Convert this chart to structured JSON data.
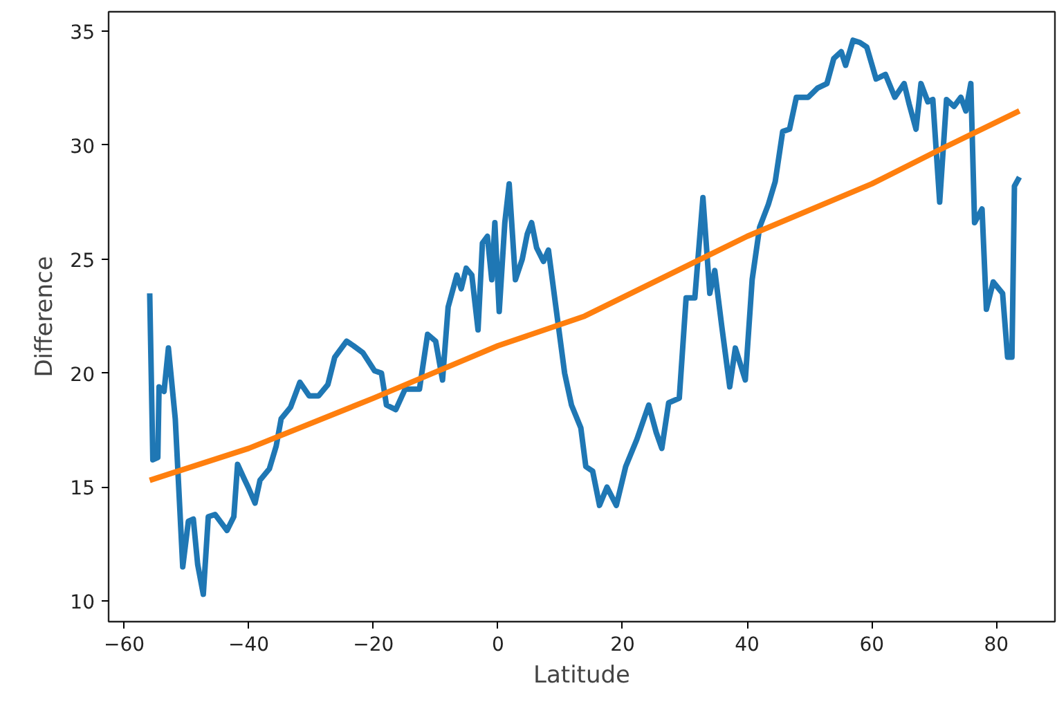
{
  "chart_data": {
    "type": "line",
    "xlabel": "Latitude",
    "ylabel": "Difference",
    "xlim": [
      -62.5,
      89.4
    ],
    "ylim": [
      9.1,
      35.85
    ],
    "xticks": [
      -60,
      -40,
      -20,
      0,
      20,
      40,
      60,
      80
    ],
    "yticks": [
      10,
      15,
      20,
      25,
      30,
      35
    ],
    "line_style": "solid",
    "series": [
      {
        "color": "#1f77b4",
        "x": [
          -55.9,
          -55.4,
          -54.6,
          -54.4,
          -53.6,
          -52.9,
          -51.8,
          -50.6,
          -49.7,
          -48.9,
          -48.2,
          -47.3,
          -46.5,
          -45.4,
          -43.5,
          -42.4,
          -41.8,
          -40.8,
          -40.1,
          -39.0,
          -38.2,
          -36.7,
          -35.6,
          -34.8,
          -33.3,
          -31.8,
          -30.3,
          -28.8,
          -27.3,
          -26.2,
          -24.3,
          -23.2,
          -21.7,
          -19.8,
          -18.7,
          -17.9,
          -16.4,
          -14.9,
          -12.6,
          -11.3,
          -10.0,
          -8.9,
          -8.0,
          -6.6,
          -5.9,
          -5.1,
          -4.2,
          -3.2,
          -2.5,
          -1.7,
          -1.0,
          -0.5,
          0.2,
          1.1,
          1.8,
          2.8,
          3.9,
          4.7,
          5.4,
          6.2,
          7.3,
          8.1,
          9.2,
          10.7,
          11.8,
          13.3,
          14.1,
          15.2,
          16.3,
          17.5,
          19.0,
          20.5,
          22.3,
          24.2,
          25.4,
          26.3,
          27.4,
          29.1,
          30.2,
          31.6,
          32.9,
          34.0,
          34.8,
          35.9,
          37.2,
          38.1,
          39.7,
          40.8,
          42.0,
          43.4,
          44.5,
          45.7,
          46.8,
          47.9,
          49.8,
          51.3,
          52.8,
          53.9,
          55.1,
          55.8,
          57.0,
          58.1,
          59.2,
          60.7,
          62.2,
          63.7,
          65.2,
          66.0,
          67.1,
          67.9,
          69.0,
          69.8,
          70.9,
          72.0,
          73.2,
          74.3,
          75.1,
          75.9,
          76.5,
          77.7,
          78.4,
          79.5,
          81.0,
          81.8,
          82.5,
          82.9,
          83.7
        ],
        "values": [
          23.5,
          16.2,
          16.3,
          19.4,
          19.2,
          21.1,
          18.0,
          11.5,
          13.5,
          13.6,
          11.6,
          10.3,
          13.7,
          13.8,
          13.1,
          13.7,
          16.0,
          15.4,
          15.0,
          14.3,
          15.3,
          15.8,
          16.8,
          18.0,
          18.5,
          19.6,
          19.0,
          19.0,
          19.5,
          20.7,
          21.4,
          21.2,
          20.9,
          20.1,
          20.0,
          18.6,
          18.4,
          19.3,
          19.3,
          21.7,
          21.4,
          19.7,
          22.9,
          24.3,
          23.7,
          24.6,
          24.3,
          21.9,
          25.7,
          26.0,
          24.1,
          26.6,
          22.7,
          26.6,
          28.3,
          24.1,
          25.0,
          26.1,
          26.6,
          25.5,
          24.9,
          25.4,
          23.1,
          20.0,
          18.6,
          17.6,
          15.9,
          15.7,
          14.2,
          15.0,
          14.2,
          15.9,
          17.1,
          18.6,
          17.4,
          16.7,
          18.7,
          18.9,
          23.3,
          23.3,
          27.7,
          23.5,
          24.5,
          22.1,
          19.4,
          21.1,
          19.7,
          24.1,
          26.4,
          27.4,
          28.4,
          30.6,
          30.7,
          32.1,
          32.1,
          32.5,
          32.7,
          33.8,
          34.1,
          33.5,
          34.6,
          34.5,
          34.3,
          32.9,
          33.1,
          32.1,
          32.7,
          31.8,
          30.7,
          32.7,
          31.9,
          32.0,
          27.5,
          32.0,
          31.7,
          32.1,
          31.5,
          32.7,
          26.6,
          27.2,
          22.8,
          24.0,
          23.5,
          20.7,
          20.7,
          28.2,
          28.6
        ]
      },
      {
        "color": "#ff7f0e",
        "x": [
          -55.9,
          -40,
          -20,
          0,
          13.9,
          40,
          60,
          70.9,
          83.7
        ],
        "values": [
          15.3,
          16.7,
          18.9,
          21.2,
          22.5,
          26.0,
          28.3,
          29.8,
          31.5
        ]
      }
    ]
  }
}
